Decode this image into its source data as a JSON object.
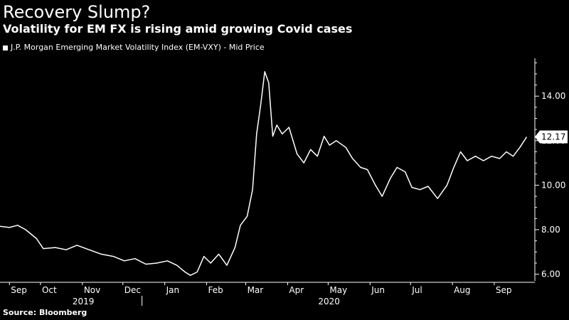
{
  "source": "Source: Bloomberg",
  "colors": {
    "background": "#000000",
    "line": "#ffffff",
    "text": "#ffffff",
    "last_badge_bg": "#ffffff",
    "last_badge_text": "#000000"
  },
  "chart_data": {
    "type": "line",
    "title": "Recovery Slump?",
    "subtitle": "Volatility for EM FX is rising amid growing Covid cases",
    "legend": [
      {
        "name": "J.P. Morgan Emerging Market Volatility Index (EM-VXY) - Mid Price"
      }
    ],
    "ylim": [
      5.7,
      15.7
    ],
    "y_ticks": [
      "6.00",
      "8.00",
      "10.00",
      "12.00",
      "14.00"
    ],
    "y_tick_values": [
      6,
      8,
      10,
      12,
      14
    ],
    "x_axis_range": [
      "2019-09-01",
      "2020-09-30"
    ],
    "x_ticks": [
      {
        "label": "Sep",
        "date": "2019-09-08"
      },
      {
        "label": "Oct",
        "date": "2019-10-01"
      },
      {
        "label": "Nov",
        "date": "2019-11-01"
      },
      {
        "label": "Dec",
        "date": "2019-12-01"
      },
      {
        "label": "Jan",
        "date": "2020-01-01"
      },
      {
        "label": "Feb",
        "date": "2020-02-01"
      },
      {
        "label": "Mar",
        "date": "2020-03-01"
      },
      {
        "label": "Apr",
        "date": "2020-04-01"
      },
      {
        "label": "May",
        "date": "2020-05-01"
      },
      {
        "label": "Jun",
        "date": "2020-06-01"
      },
      {
        "label": "Jul",
        "date": "2020-07-01"
      },
      {
        "label": "Aug",
        "date": "2020-08-01"
      },
      {
        "label": "Sep",
        "date": "2020-09-01"
      }
    ],
    "year_labels": [
      {
        "label": "2019",
        "date": "2019-11-01"
      },
      {
        "label": "2020",
        "date": "2020-05-01"
      }
    ],
    "year_separator_date": "2020-01-01",
    "last_value_label": "12.17",
    "series": [
      {
        "name": "EM-VXY Mid Price",
        "points": [
          [
            "2019-09-01",
            8.15
          ],
          [
            "2019-09-08",
            8.1
          ],
          [
            "2019-09-14",
            8.2
          ],
          [
            "2019-09-20",
            8.0
          ],
          [
            "2019-09-28",
            7.6
          ],
          [
            "2019-10-03",
            7.15
          ],
          [
            "2019-10-12",
            7.2
          ],
          [
            "2019-10-20",
            7.1
          ],
          [
            "2019-10-28",
            7.3
          ],
          [
            "2019-11-06",
            7.1
          ],
          [
            "2019-11-15",
            6.9
          ],
          [
            "2019-11-24",
            6.8
          ],
          [
            "2019-12-02",
            6.6
          ],
          [
            "2019-12-10",
            6.7
          ],
          [
            "2019-12-18",
            6.45
          ],
          [
            "2019-12-26",
            6.5
          ],
          [
            "2020-01-03",
            6.6
          ],
          [
            "2020-01-10",
            6.4
          ],
          [
            "2020-01-16",
            6.1
          ],
          [
            "2020-01-20",
            5.95
          ],
          [
            "2020-01-25",
            6.1
          ],
          [
            "2020-01-30",
            6.8
          ],
          [
            "2020-02-04",
            6.5
          ],
          [
            "2020-02-10",
            6.9
          ],
          [
            "2020-02-16",
            6.4
          ],
          [
            "2020-02-22",
            7.2
          ],
          [
            "2020-02-26",
            8.2
          ],
          [
            "2020-03-02",
            8.6
          ],
          [
            "2020-03-06",
            9.8
          ],
          [
            "2020-03-09",
            12.3
          ],
          [
            "2020-03-12",
            13.6
          ],
          [
            "2020-03-15",
            15.1
          ],
          [
            "2020-03-18",
            14.6
          ],
          [
            "2020-03-21",
            12.2
          ],
          [
            "2020-03-24",
            12.7
          ],
          [
            "2020-03-28",
            12.3
          ],
          [
            "2020-04-02",
            12.6
          ],
          [
            "2020-04-08",
            11.4
          ],
          [
            "2020-04-13",
            11.0
          ],
          [
            "2020-04-18",
            11.6
          ],
          [
            "2020-04-23",
            11.3
          ],
          [
            "2020-04-28",
            12.2
          ],
          [
            "2020-05-02",
            11.8
          ],
          [
            "2020-05-07",
            12.0
          ],
          [
            "2020-05-14",
            11.7
          ],
          [
            "2020-05-19",
            11.2
          ],
          [
            "2020-05-25",
            10.8
          ],
          [
            "2020-05-30",
            10.7
          ],
          [
            "2020-06-05",
            10.0
          ],
          [
            "2020-06-10",
            9.5
          ],
          [
            "2020-06-16",
            10.3
          ],
          [
            "2020-06-21",
            10.8
          ],
          [
            "2020-06-27",
            10.6
          ],
          [
            "2020-07-02",
            9.9
          ],
          [
            "2020-07-08",
            9.8
          ],
          [
            "2020-07-14",
            9.95
          ],
          [
            "2020-07-21",
            9.4
          ],
          [
            "2020-07-28",
            10.0
          ],
          [
            "2020-08-02",
            10.8
          ],
          [
            "2020-08-07",
            11.5
          ],
          [
            "2020-08-12",
            11.1
          ],
          [
            "2020-08-18",
            11.3
          ],
          [
            "2020-08-24",
            11.1
          ],
          [
            "2020-08-30",
            11.3
          ],
          [
            "2020-09-05",
            11.2
          ],
          [
            "2020-09-10",
            11.5
          ],
          [
            "2020-09-15",
            11.3
          ],
          [
            "2020-09-20",
            11.7
          ],
          [
            "2020-09-25",
            12.17
          ]
        ]
      }
    ]
  }
}
